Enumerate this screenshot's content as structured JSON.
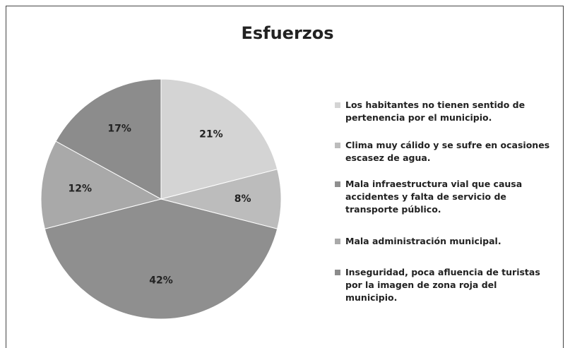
{
  "chart_data": {
    "type": "pie",
    "title": "Esfuerzos",
    "categories": [
      "Los habitantes no tienen sentido de pertenencia por el municipio.",
      "Clima muy cálido y se sufre en ocasiones escasez de agua.",
      "Mala infraestructura vial que causa accidentes y falta de servicio de transporte público.",
      "Mala administración municipal.",
      "Inseguridad, poca afluencia de turistas por la imagen de zona roja del municipio."
    ],
    "values": [
      21,
      8,
      42,
      12,
      17
    ],
    "value_labels": [
      "21%",
      "8%",
      "42%",
      "12%",
      "17%"
    ],
    "colors": [
      "#d4d4d4",
      "#bcbcbc",
      "#8f8f8f",
      "#a9a9a9",
      "#8c8c8c"
    ],
    "legend": "right"
  }
}
